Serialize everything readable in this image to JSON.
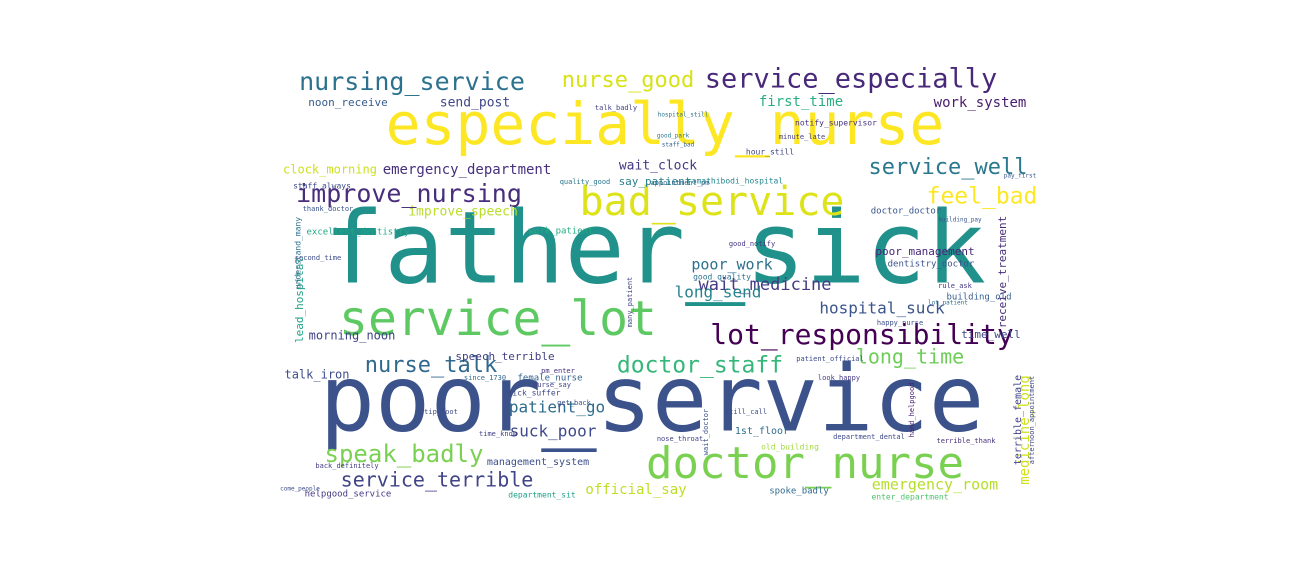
{
  "chart_data": {
    "type": "wordcloud",
    "title": "",
    "background": "#ffffff",
    "colormap": "viridis",
    "words": [
      {
        "text": "father_sick",
        "weight": 100,
        "color": "#21918c"
      },
      {
        "text": "poor_service",
        "weight": 95,
        "color": "#3b528b"
      },
      {
        "text": "especially_nurse",
        "weight": 80,
        "color": "#fde725"
      },
      {
        "text": "service_lot",
        "weight": 65,
        "color": "#5ec962"
      },
      {
        "text": "doctor_nurse",
        "weight": 55,
        "color": "#7ad151"
      },
      {
        "text": "bad_service",
        "weight": 50,
        "color": "#dde318"
      },
      {
        "text": "lot_responsibility",
        "weight": 38,
        "color": "#440154"
      },
      {
        "text": "service_especially",
        "weight": 36,
        "color": "#482878"
      },
      {
        "text": "nursing_service",
        "weight": 32,
        "color": "#2c728e"
      },
      {
        "text": "improve_nursing",
        "weight": 32,
        "color": "#472d7b"
      },
      {
        "text": "feel_bad",
        "weight": 30,
        "color": "#fde725"
      },
      {
        "text": "speak_badly",
        "weight": 30,
        "color": "#7ad151"
      },
      {
        "text": "nurse_good",
        "weight": 28,
        "color": "#d8e219"
      },
      {
        "text": "service_well",
        "weight": 28,
        "color": "#2a788e"
      },
      {
        "text": "doctor_staff",
        "weight": 28,
        "color": "#35b779"
      },
      {
        "text": "nurse_talk",
        "weight": 26,
        "color": "#31688e"
      },
      {
        "text": "long_time",
        "weight": 26,
        "color": "#6ece58"
      },
      {
        "text": "service_terrible",
        "weight": 24,
        "color": "#414487"
      },
      {
        "text": "suck_poor",
        "weight": 20,
        "color": "#3e4989"
      },
      {
        "text": "wait_medicine",
        "weight": 20,
        "color": "#443a83"
      },
      {
        "text": "hospital_suck",
        "weight": 18,
        "color": "#3a548c"
      },
      {
        "text": "long_send",
        "weight": 18,
        "color": "#26828e"
      },
      {
        "text": "patient_go",
        "weight": 18,
        "color": "#2f6c8e"
      },
      {
        "text": "emergency_department",
        "weight": 16,
        "color": "#46307e"
      },
      {
        "text": "poor_work",
        "weight": 16,
        "color": "#2d708e"
      },
      {
        "text": "emergency_room",
        "weight": 16,
        "color": "#b5de2b"
      },
      {
        "text": "medicine_long",
        "weight": 16,
        "color": "#d0e11c"
      },
      {
        "text": "official_say",
        "weight": 15,
        "color": "#bddf26"
      },
      {
        "text": "improve_speech",
        "weight": 15,
        "color": "#b8de29"
      },
      {
        "text": "send_post",
        "weight": 14,
        "color": "#404588"
      },
      {
        "text": "first_time",
        "weight": 14,
        "color": "#29af7f"
      },
      {
        "text": "work_system",
        "weight": 14,
        "color": "#481b6d"
      },
      {
        "text": "wait_clock",
        "weight": 14,
        "color": "#453781"
      },
      {
        "text": "clock_morning",
        "weight": 13,
        "color": "#cde11d"
      },
      {
        "text": "morning_noon",
        "weight": 13,
        "color": "#404387"
      },
      {
        "text": "speech_terrible",
        "weight": 12,
        "color": "#423f85"
      },
      {
        "text": "talk_iron",
        "weight": 12,
        "color": "#3d4e8a"
      },
      {
        "text": "noon_receive",
        "weight": 12,
        "color": "#365c8d"
      },
      {
        "text": "poor_management",
        "weight": 12,
        "color": "#482475"
      },
      {
        "text": "receive_treatment",
        "weight": 12,
        "color": "#472c7a"
      },
      {
        "text": "say_patient",
        "weight": 12,
        "color": "#27808e"
      },
      {
        "text": "management_system",
        "weight": 11,
        "color": "#3c4f8a"
      },
      {
        "text": "doctor_doctor",
        "weight": 11,
        "color": "#39558c"
      },
      {
        "text": "dentistry_doctor",
        "weight": 11,
        "color": "#3b528b"
      },
      {
        "text": "lead_hospital",
        "weight": 11,
        "color": "#20a386"
      },
      {
        "text": "excellent_dentistry",
        "weight": 10,
        "color": "#22a884"
      },
      {
        "text": "work_patient",
        "weight": 10,
        "color": "#25ac82"
      },
      {
        "text": "building_old",
        "weight": 10,
        "color": "#355f8d"
      },
      {
        "text": "time_well",
        "weight": 10,
        "color": "#3f4788"
      },
      {
        "text": "terrible_female",
        "weight": 10,
        "color": "#414287"
      },
      {
        "text": "female_nurse",
        "weight": 10,
        "color": "#33638d"
      },
      {
        "text": "1st_floor",
        "weight": 10,
        "color": "#2e6e8e"
      },
      {
        "text": "spoke_badly",
        "weight": 10,
        "color": "#306a8e"
      },
      {
        "text": "helpgood_service",
        "weight": 9,
        "color": "#453882"
      },
      {
        "text": "department_sit",
        "weight": 9,
        "color": "#1fa088"
      },
      {
        "text": "enter_department",
        "weight": 9,
        "color": "#50c46a"
      },
      {
        "text": "afternoon_appointment",
        "weight": 9,
        "color": "#3e4a89"
      },
      {
        "text": "ramathibodi_hospital",
        "weight": 8,
        "color": "#23888e"
      },
      {
        "text": "notify_supervisor",
        "weight": 8,
        "color": "#46327e"
      },
      {
        "text": "quality_good",
        "weight": 8,
        "color": "#2a768e"
      },
      {
        "text": "appointment_pm",
        "weight": 8,
        "color": "#31678e"
      },
      {
        "text": "thank_doctor",
        "weight": 8,
        "color": "#3a538b"
      },
      {
        "text": "minute_late",
        "weight": 8,
        "color": "#433e85"
      },
      {
        "text": "hour_still",
        "weight": 8,
        "color": "#404588"
      },
      {
        "text": "good_quality",
        "weight": 8,
        "color": "#2b748e"
      },
      {
        "text": "good_notify",
        "weight": 8,
        "color": "#463480"
      },
      {
        "text": "staff_always",
        "weight": 8,
        "color": "#3e4c8a"
      },
      {
        "text": "sick_suffer",
        "weight": 8,
        "color": "#3f4889"
      },
      {
        "text": "nurse_say",
        "weight": 8,
        "color": "#414387"
      },
      {
        "text": "pm_enter",
        "weight": 8,
        "color": "#46337f"
      },
      {
        "text": "get_back",
        "weight": 8,
        "color": "#3b518b"
      },
      {
        "text": "happy_nurse",
        "weight": 8,
        "color": "#3c508b"
      },
      {
        "text": "look_happy",
        "weight": 8,
        "color": "#443b84"
      },
      {
        "text": "understand_many",
        "weight": 8,
        "color": "#2d718e"
      },
      {
        "text": "second_time",
        "weight": 7,
        "color": "#3d4d8a"
      },
      {
        "text": "back_definitely",
        "weight": 7,
        "color": "#433d84"
      },
      {
        "text": "old_building",
        "weight": 7,
        "color": "#9fda3a"
      },
      {
        "text": "department_dental",
        "weight": 7,
        "color": "#3e4989"
      },
      {
        "text": "hand_helpgood",
        "weight": 7,
        "color": "#481f70"
      },
      {
        "text": "terrible_thank",
        "weight": 7,
        "color": "#472f7d"
      },
      {
        "text": "talk_badly",
        "weight": 7,
        "color": "#424186"
      },
      {
        "text": "many_patient",
        "weight": 7,
        "color": "#3f4788"
      },
      {
        "text": "tip_foot",
        "weight": 6,
        "color": "#3d4e8a"
      },
      {
        "text": "building_pay",
        "weight": 6,
        "color": "#3a548c"
      },
      {
        "text": "pay_first",
        "weight": 6,
        "color": "#38588c"
      },
      {
        "text": "lot_patient",
        "weight": 6,
        "color": "#2e6f8e"
      },
      {
        "text": "staff_bad",
        "weight": 6,
        "color": "#33628d"
      },
      {
        "text": "come_people",
        "weight": 6,
        "color": "#3c508b"
      },
      {
        "text": "rule_ask",
        "weight": 6,
        "color": "#453781"
      },
      {
        "text": "good_park",
        "weight": 6,
        "color": "#2a788e"
      },
      {
        "text": "wait_doctor",
        "weight": 6,
        "color": "#3b528b"
      },
      {
        "text": "still_call",
        "weight": 6,
        "color": "#3d4d8a"
      },
      {
        "text": "nose_throat",
        "weight": 6,
        "color": "#414487"
      },
      {
        "text": "since_1730",
        "weight": 6,
        "color": "#31688e"
      },
      {
        "text": "time_know",
        "weight": 6,
        "color": "#424186"
      },
      {
        "text": "patient_official",
        "weight": 6,
        "color": "#3e4a89"
      },
      {
        "text": "hospital_still",
        "weight": 6,
        "color": "#2c718e"
      }
    ]
  }
}
